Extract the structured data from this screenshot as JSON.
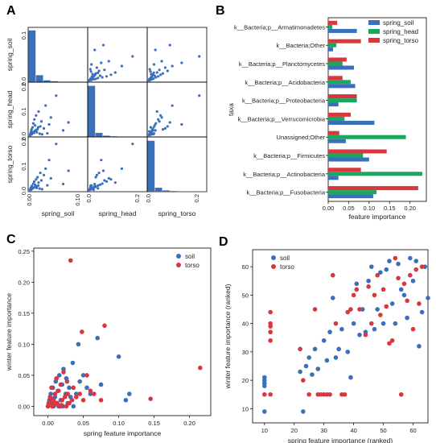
{
  "colors": {
    "soil": "#3a6fba",
    "head": "#1aa861",
    "torso": "#d9363e"
  },
  "chart_data": [
    {
      "panel": "A",
      "type": "scatter",
      "vars": [
        "spring_soil",
        "spring_head",
        "spring_torso"
      ],
      "x_ticks": [
        [
          "0.00",
          "0.10"
        ],
        [
          "0.0",
          "0.2"
        ],
        [
          "0.0",
          "0.2"
        ]
      ],
      "y_ticks": [
        [
          "0.1",
          "0.0"
        ],
        [
          "0.2",
          "0.1",
          "0.0"
        ],
        [
          "0.2",
          "0.1",
          "0.0"
        ]
      ],
      "ranges": [
        [
          0,
          0.16
        ],
        [
          0,
          0.26
        ],
        [
          0,
          0.24
        ]
      ],
      "hist": [
        [
          0.112,
          0.015,
          0.004,
          0.002,
          0.001,
          0.001,
          0.001,
          0.0005
        ],
        [
          0.25,
          0.02,
          0.006,
          0.003,
          0.002,
          0.001,
          0.001,
          0.001
        ],
        [
          0.23,
          0.018,
          0.006,
          0.003,
          0.002,
          0.002,
          0.001,
          0.001
        ]
      ],
      "hist_max": [
        0.115,
        0.26,
        0.24
      ],
      "points": {
        "soil": [
          0.001,
          0.002,
          0.003,
          0.004,
          0.005,
          0.006,
          0.008,
          0.01,
          0.012,
          0.013,
          0.015,
          0.017,
          0.018,
          0.02,
          0.022,
          0.025,
          0.028,
          0.03,
          0.033,
          0.035,
          0.04,
          0.045,
          0.05,
          0.055,
          0.06,
          0.075,
          0.095,
          0.11,
          0.001,
          0.002,
          0.004,
          0.006,
          0.009,
          0.014,
          0.019,
          0.024
        ],
        "head": [
          0.002,
          0.01,
          0.004,
          0.02,
          0.03,
          0.006,
          0.04,
          0.06,
          0.012,
          0.08,
          0.05,
          0.025,
          0.1,
          0.015,
          0.03,
          0.12,
          0.008,
          0.045,
          0.07,
          0.005,
          0.035,
          0.15,
          0.01,
          0.055,
          0.09,
          0.2,
          0.025,
          0.065,
          0.001,
          0.003,
          0.006,
          0.011,
          0.016,
          0.022,
          0.028,
          0.04
        ],
        "torso": [
          0.003,
          0.005,
          0.01,
          0.002,
          0.015,
          0.02,
          0.008,
          0.03,
          0.012,
          0.04,
          0.025,
          0.018,
          0.05,
          0.01,
          0.06,
          0.035,
          0.007,
          0.08,
          0.045,
          0.004,
          0.07,
          0.1,
          0.022,
          0.14,
          0.055,
          0.215,
          0.028,
          0.09,
          0.001,
          0.002,
          0.003,
          0.006,
          0.009,
          0.013,
          0.017,
          0.021
        ]
      }
    },
    {
      "panel": "B",
      "type": "bar",
      "orientation": "horizontal",
      "ylabel": "taxa",
      "xlabel": "feature importance",
      "xlim": [
        0,
        0.24
      ],
      "x_ticks": [
        0.0,
        0.05,
        0.1,
        0.15,
        0.2
      ],
      "x_tick_labels": [
        "0.00",
        "0.05",
        "0.10",
        "0.15",
        "0.20"
      ],
      "legend_position": "top-right",
      "categories": [
        "k__Bacteria;p__Armatimonadetes",
        "k__Bacteria;Other",
        "k__Bacteria;p__Planctomycetes",
        "k__Bacteria;p__Acidobacteria",
        "k__Bacteria;p__Proteobacteria",
        "k__Bacteria;p__Verrucomicrobia",
        "Unassigned;Other",
        "k__Bacteria;p__Firmicutes",
        "k__Bacteria;p__Actinobacteria",
        "k__Bacteria;p__Fusobacteria"
      ],
      "series": [
        {
          "name": "spring_soil",
          "key": "soil",
          "values": [
            0.07,
            0.012,
            0.063,
            0.066,
            0.025,
            0.113,
            0.043,
            0.1,
            0.025,
            0.11
          ]
        },
        {
          "name": "spring_head",
          "key": "head",
          "values": [
            0.01,
            0.02,
            0.035,
            0.055,
            0.07,
            0.04,
            0.19,
            0.085,
            0.23,
            0.118
          ]
        },
        {
          "name": "spring_torso",
          "key": "torso",
          "values": [
            0.022,
            0.08,
            0.045,
            0.035,
            0.07,
            0.055,
            0.027,
            0.143,
            0.08,
            0.22
          ]
        }
      ]
    },
    {
      "panel": "C",
      "type": "scatter",
      "xlabel": "spring feature importance",
      "ylabel": "winter feature importance",
      "xlim": [
        -0.02,
        0.23
      ],
      "ylim": [
        -0.015,
        0.255
      ],
      "x_ticks": [
        0.0,
        0.05,
        0.1,
        0.15,
        0.2
      ],
      "x_tick_labels": [
        "0.00",
        "0.05",
        "0.10",
        "0.15",
        "0.20"
      ],
      "y_ticks": [
        0.0,
        0.05,
        0.1,
        0.15,
        0.2,
        0.25
      ],
      "y_tick_labels": [
        "0.00",
        "0.05",
        "0.10",
        "0.15",
        "0.20",
        "0.25"
      ],
      "legend_position": "top-right",
      "series": [
        {
          "name": "soil",
          "key": "soil",
          "points": [
            [
              0.0,
              0.0
            ],
            [
              0.002,
              0.01
            ],
            [
              0.004,
              0.02
            ],
            [
              0.005,
              0.005
            ],
            [
              0.007,
              0.03
            ],
            [
              0.008,
              0.0
            ],
            [
              0.01,
              0.015
            ],
            [
              0.011,
              0.04
            ],
            [
              0.012,
              0.005
            ],
            [
              0.014,
              0.025
            ],
            [
              0.015,
              0.0
            ],
            [
              0.016,
              0.05
            ],
            [
              0.018,
              0.01
            ],
            [
              0.02,
              0.035
            ],
            [
              0.021,
              0.0
            ],
            [
              0.022,
              0.06
            ],
            [
              0.025,
              0.02
            ],
            [
              0.026,
              0.045
            ],
            [
              0.028,
              0.005
            ],
            [
              0.03,
              0.03
            ],
            [
              0.032,
              0.015
            ],
            [
              0.035,
              0.07
            ],
            [
              0.036,
              0.0
            ],
            [
              0.04,
              0.02
            ],
            [
              0.043,
              0.1
            ],
            [
              0.045,
              0.04
            ],
            [
              0.05,
              0.05
            ],
            [
              0.055,
              0.03
            ],
            [
              0.06,
              0.02
            ],
            [
              0.07,
              0.11
            ],
            [
              0.075,
              0.035
            ],
            [
              0.1,
              0.08
            ],
            [
              0.11,
              0.01
            ],
            [
              0.115,
              0.02
            ],
            [
              0.013,
              0.005
            ],
            [
              0.006,
              0.012
            ]
          ]
        },
        {
          "name": "torso",
          "key": "torso",
          "points": [
            [
              0.0,
              0.0
            ],
            [
              0.001,
              0.005
            ],
            [
              0.003,
              0.015
            ],
            [
              0.005,
              0.03
            ],
            [
              0.006,
              0.0
            ],
            [
              0.008,
              0.01
            ],
            [
              0.01,
              0.02
            ],
            [
              0.012,
              0.045
            ],
            [
              0.013,
              0.005
            ],
            [
              0.015,
              0.025
            ],
            [
              0.017,
              0.0
            ],
            [
              0.018,
              0.035
            ],
            [
              0.02,
              0.01
            ],
            [
              0.022,
              0.055
            ],
            [
              0.024,
              0.015
            ],
            [
              0.026,
              0.0
            ],
            [
              0.028,
              0.02
            ],
            [
              0.03,
              0.005
            ],
            [
              0.032,
              0.235
            ],
            [
              0.034,
              0.01
            ],
            [
              0.036,
              0.03
            ],
            [
              0.04,
              0.015
            ],
            [
              0.045,
              0.02
            ],
            [
              0.048,
              0.12
            ],
            [
              0.05,
              0.01
            ],
            [
              0.055,
              0.05
            ],
            [
              0.06,
              0.025
            ],
            [
              0.065,
              0.02
            ],
            [
              0.075,
              0.01
            ],
            [
              0.08,
              0.13
            ],
            [
              0.145,
              0.012
            ],
            [
              0.215,
              0.062
            ],
            [
              0.009,
              0.003
            ],
            [
              0.004,
              0.008
            ],
            [
              0.019,
              0.002
            ],
            [
              0.027,
              0.04
            ]
          ]
        }
      ]
    },
    {
      "panel": "D",
      "type": "scatter",
      "xlabel": "spring feature importance (ranked)",
      "ylabel": "winter feature importance (ranked)",
      "xlim": [
        6,
        65
      ],
      "ylim": [
        5,
        66
      ],
      "x_ticks": [
        10,
        20,
        30,
        40,
        50,
        60
      ],
      "x_tick_labels": [
        "10",
        "20",
        "30",
        "40",
        "50",
        "60"
      ],
      "y_ticks": [
        10,
        20,
        30,
        40,
        50,
        60
      ],
      "y_tick_labels": [
        "10",
        "20",
        "30",
        "40",
        "50",
        "60"
      ],
      "legend_position": "top-left",
      "series": [
        {
          "name": "soil",
          "key": "soil",
          "points": [
            [
              10,
              9
            ],
            [
              10,
              18
            ],
            [
              10,
              19
            ],
            [
              10,
              20
            ],
            [
              10,
              21
            ],
            [
              22,
              23
            ],
            [
              23,
              9
            ],
            [
              24,
              25
            ],
            [
              25,
              28
            ],
            [
              26,
              22
            ],
            [
              27,
              31
            ],
            [
              28,
              24
            ],
            [
              30,
              34
            ],
            [
              31,
              27
            ],
            [
              32,
              37
            ],
            [
              33,
              49
            ],
            [
              34,
              28
            ],
            [
              35,
              31
            ],
            [
              36,
              38
            ],
            [
              38,
              30
            ],
            [
              39,
              21
            ],
            [
              40,
              40
            ],
            [
              41,
              54
            ],
            [
              42,
              36
            ],
            [
              43,
              45
            ],
            [
              44,
              37
            ],
            [
              45,
              55
            ],
            [
              46,
              60
            ],
            [
              47,
              38
            ],
            [
              48,
              45
            ],
            [
              49,
              58
            ],
            [
              50,
              40
            ],
            [
              51,
              59
            ],
            [
              52,
              62
            ],
            [
              53,
              47
            ],
            [
              54,
              40
            ],
            [
              55,
              61
            ],
            [
              56,
              52
            ],
            [
              57,
              50
            ],
            [
              58,
              42
            ],
            [
              59,
              63
            ],
            [
              60,
              55
            ],
            [
              61,
              62
            ],
            [
              62,
              32
            ],
            [
              63,
              44
            ],
            [
              64,
              60
            ],
            [
              65,
              49
            ]
          ]
        },
        {
          "name": "torso",
          "key": "torso",
          "points": [
            [
              10,
              15
            ],
            [
              12,
              44
            ],
            [
              12,
              40
            ],
            [
              12,
              39
            ],
            [
              12,
              37
            ],
            [
              12,
              34
            ],
            [
              12,
              15
            ],
            [
              22,
              31
            ],
            [
              23,
              20
            ],
            [
              25,
              15
            ],
            [
              27,
              45
            ],
            [
              28,
              15
            ],
            [
              29,
              15
            ],
            [
              30,
              15
            ],
            [
              31,
              15
            ],
            [
              32,
              15
            ],
            [
              33,
              57
            ],
            [
              34,
              40
            ],
            [
              36,
              15
            ],
            [
              37,
              15
            ],
            [
              38,
              44
            ],
            [
              39,
              45
            ],
            [
              40,
              50
            ],
            [
              41,
              52
            ],
            [
              42,
              45
            ],
            [
              44,
              36
            ],
            [
              45,
              53
            ],
            [
              46,
              40
            ],
            [
              47,
              50
            ],
            [
              48,
              57
            ],
            [
              49,
              43
            ],
            [
              50,
              52
            ],
            [
              51,
              46
            ],
            [
              52,
              33
            ],
            [
              53,
              34
            ],
            [
              54,
              63
            ],
            [
              55,
              56
            ],
            [
              56,
              15
            ],
            [
              57,
              54
            ],
            [
              58,
              48
            ],
            [
              59,
              57
            ],
            [
              60,
              38
            ],
            [
              61,
              59
            ],
            [
              62,
              47
            ],
            [
              63,
              60
            ]
          ]
        }
      ]
    }
  ]
}
